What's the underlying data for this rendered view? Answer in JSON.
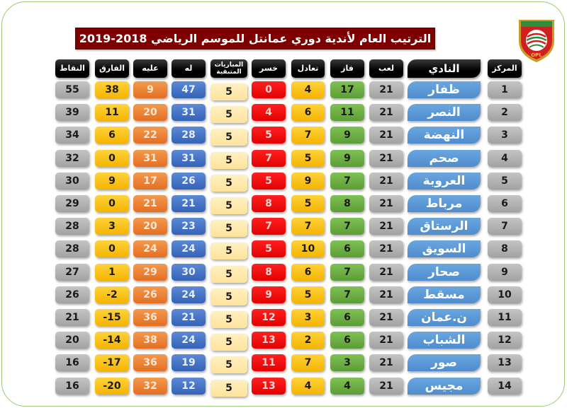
{
  "title": "الترتيب العام لأندية دوري عمانتل للموسم الرياضي 2018-2019",
  "logo": {
    "icon": "oman-football-league-shield-logo",
    "caption": "OPL"
  },
  "colors": {
    "title_bg": "#7f0000",
    "header_bg": "#000000",
    "points": "#a8a8a8",
    "goal_diff": "#f7b800",
    "goals_against": "#e8762a",
    "goals_for": "#3a69bc",
    "remaining": "#fee6a3",
    "lost": "#ee0000",
    "drawn": "#f7b800",
    "won": "#64a63c",
    "played": "#a8a8a8",
    "club": "#5493d4",
    "rank": "#a8a8a8",
    "frame_border": "#9cc97a"
  },
  "headers": {
    "points": "النقاط",
    "goal_diff": "الفارق",
    "goals_against": "عليه",
    "goals_for": "له",
    "remaining": "المباريات المتبقية",
    "lost": "خسر",
    "drawn": "تعادل",
    "won": "فاز",
    "played": "لعب",
    "club": "النادي",
    "rank": "المركز"
  },
  "rows": [
    {
      "rank": "1",
      "club": "ظفار",
      "played": "21",
      "won": "17",
      "drawn": "4",
      "lost": "0",
      "remaining": "5",
      "goals_for": "47",
      "goals_against": "9",
      "goal_diff": "38",
      "points": "55"
    },
    {
      "rank": "2",
      "club": "النصر",
      "played": "21",
      "won": "11",
      "drawn": "6",
      "lost": "4",
      "remaining": "5",
      "goals_for": "31",
      "goals_against": "20",
      "goal_diff": "11",
      "points": "39"
    },
    {
      "rank": "3",
      "club": "النهضة",
      "played": "21",
      "won": "9",
      "drawn": "7",
      "lost": "5",
      "remaining": "5",
      "goals_for": "28",
      "goals_against": "22",
      "goal_diff": "6",
      "points": "34"
    },
    {
      "rank": "4",
      "club": "صحم",
      "played": "21",
      "won": "9",
      "drawn": "5",
      "lost": "7",
      "remaining": "5",
      "goals_for": "31",
      "goals_against": "31",
      "goal_diff": "0",
      "points": "32"
    },
    {
      "rank": "5",
      "club": "العروبة",
      "played": "21",
      "won": "7",
      "drawn": "9",
      "lost": "5",
      "remaining": "5",
      "goals_for": "26",
      "goals_against": "17",
      "goal_diff": "9",
      "points": "30"
    },
    {
      "rank": "6",
      "club": "مرباط",
      "played": "21",
      "won": "8",
      "drawn": "5",
      "lost": "8",
      "remaining": "5",
      "goals_for": "21",
      "goals_against": "21",
      "goal_diff": "0",
      "points": "29"
    },
    {
      "rank": "7",
      "club": "الرستاق",
      "played": "21",
      "won": "7",
      "drawn": "7",
      "lost": "7",
      "remaining": "5",
      "goals_for": "23",
      "goals_against": "20",
      "goal_diff": "3",
      "points": "28"
    },
    {
      "rank": "8",
      "club": "السويق",
      "played": "21",
      "won": "6",
      "drawn": "10",
      "lost": "5",
      "remaining": "5",
      "goals_for": "24",
      "goals_against": "24",
      "goal_diff": "0",
      "points": "28"
    },
    {
      "rank": "9",
      "club": "صحار",
      "played": "21",
      "won": "7",
      "drawn": "6",
      "lost": "8",
      "remaining": "5",
      "goals_for": "30",
      "goals_against": "29",
      "goal_diff": "1",
      "points": "27"
    },
    {
      "rank": "10",
      "club": "مسقط",
      "played": "21",
      "won": "7",
      "drawn": "5",
      "lost": "9",
      "remaining": "5",
      "goals_for": "24",
      "goals_against": "26",
      "goal_diff": "-2",
      "points": "26"
    },
    {
      "rank": "11",
      "club": "ن.عمان",
      "played": "21",
      "won": "6",
      "drawn": "3",
      "lost": "12",
      "remaining": "5",
      "goals_for": "21",
      "goals_against": "36",
      "goal_diff": "-15",
      "points": "21"
    },
    {
      "rank": "12",
      "club": "الشباب",
      "played": "21",
      "won": "6",
      "drawn": "2",
      "lost": "13",
      "remaining": "5",
      "goals_for": "24",
      "goals_against": "38",
      "goal_diff": "-14",
      "points": "20"
    },
    {
      "rank": "13",
      "club": "صور",
      "played": "21",
      "won": "3",
      "drawn": "7",
      "lost": "11",
      "remaining": "5",
      "goals_for": "19",
      "goals_against": "36",
      "goal_diff": "-17",
      "points": "16"
    },
    {
      "rank": "14",
      "club": "مجيس",
      "played": "21",
      "won": "4",
      "drawn": "4",
      "lost": "13",
      "remaining": "5",
      "goals_for": "12",
      "goals_against": "32",
      "goal_diff": "-20",
      "points": "16"
    }
  ]
}
